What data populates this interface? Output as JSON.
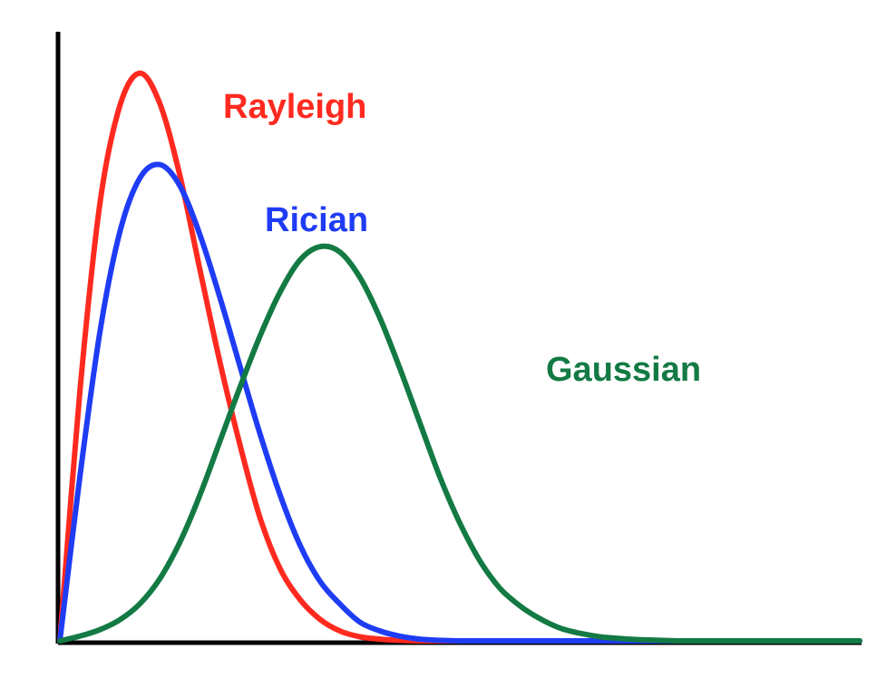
{
  "chart_data": {
    "type": "line",
    "title": "",
    "xlabel": "",
    "ylabel": "",
    "xlim": [
      0,
      10
    ],
    "ylim": [
      0,
      1.0
    ],
    "grid": false,
    "legend": "inline labels next to curves",
    "x": [
      0,
      0.25,
      0.5,
      0.75,
      1,
      1.25,
      1.5,
      1.75,
      2,
      2.25,
      2.5,
      2.75,
      3,
      3.25,
      3.5,
      3.75,
      4,
      4.25,
      4.5,
      4.75,
      5,
      5.25,
      5.5,
      5.75,
      6,
      6.25,
      6.5,
      6.75,
      7,
      7.25,
      7.5,
      7.75,
      8,
      8.25,
      8.5,
      8.75,
      9,
      9.25,
      9.5,
      9.75,
      10
    ],
    "series": [
      {
        "name": "Rayleigh",
        "color": "#ff2a1f",
        "values": [
          0,
          0.424,
          0.745,
          0.912,
          0.968,
          0.916,
          0.794,
          0.634,
          0.476,
          0.335,
          0.211,
          0.124,
          0.071,
          0.037,
          0.017,
          0.007,
          0.003,
          0.001,
          0,
          0,
          0,
          0,
          0,
          0,
          0,
          0,
          0,
          0,
          0,
          0,
          0,
          0,
          0,
          0,
          0,
          0,
          0,
          0,
          0,
          0,
          0
        ]
      },
      {
        "name": "Rician",
        "color": "#1f3cf5",
        "values": [
          0,
          0.279,
          0.526,
          0.697,
          0.789,
          0.812,
          0.776,
          0.693,
          0.586,
          0.469,
          0.354,
          0.25,
          0.164,
          0.102,
          0.063,
          0.032,
          0.017,
          0.008,
          0.003,
          0.001,
          0,
          0,
          0,
          0,
          0,
          0,
          0,
          0,
          0,
          0,
          0,
          0,
          0,
          0,
          0,
          0,
          0,
          0,
          0,
          0,
          0
        ]
      },
      {
        "name": "Gaussian",
        "color": "#137a44",
        "values": [
          0,
          0.008,
          0.019,
          0.036,
          0.063,
          0.106,
          0.168,
          0.248,
          0.34,
          0.432,
          0.519,
          0.594,
          0.649,
          0.672,
          0.663,
          0.62,
          0.551,
          0.465,
          0.372,
          0.28,
          0.201,
          0.137,
          0.09,
          0.06,
          0.038,
          0.022,
          0.013,
          0.007,
          0.004,
          0.002,
          0.001,
          0,
          0,
          0,
          0,
          0,
          0,
          0,
          0,
          0,
          0
        ]
      }
    ]
  }
}
